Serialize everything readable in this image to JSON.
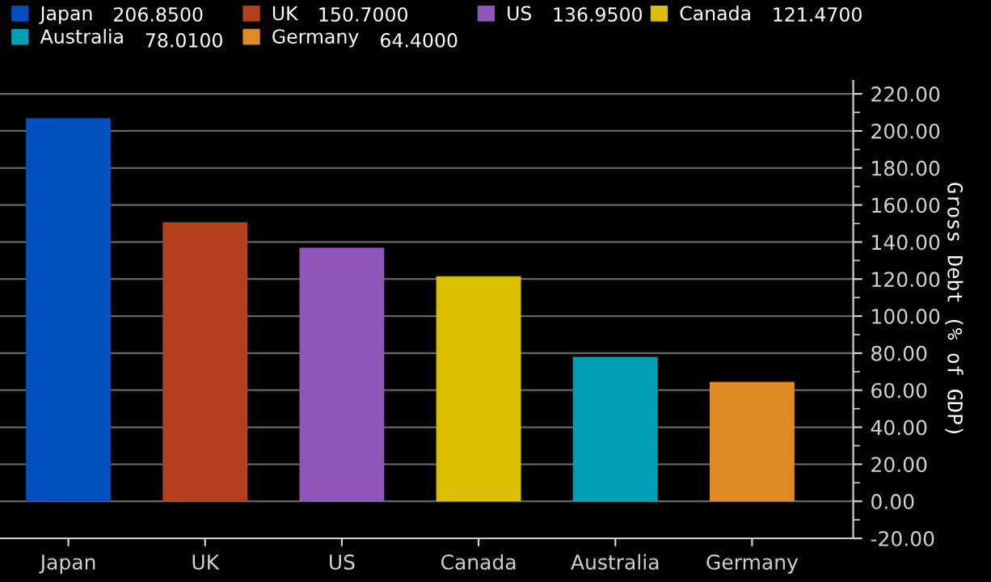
{
  "chart_data": {
    "type": "bar",
    "categories": [
      "Japan",
      "UK",
      "US",
      "Canada",
      "Australia",
      "Germany"
    ],
    "series": [
      {
        "name": "Japan",
        "color": "#0050c0",
        "values": [
          206.85,
          null,
          null,
          null,
          null,
          null
        ]
      },
      {
        "name": "UK",
        "color": "#b5401e",
        "values": [
          null,
          150.7,
          null,
          null,
          null,
          null
        ]
      },
      {
        "name": "US",
        "color": "#9055bb",
        "values": [
          null,
          null,
          136.95,
          null,
          null,
          null
        ]
      },
      {
        "name": "Canada",
        "color": "#d9bf00",
        "values": [
          null,
          null,
          null,
          121.47,
          null,
          null
        ]
      },
      {
        "name": "Australia",
        "color": "#009fb5",
        "values": [
          null,
          null,
          null,
          null,
          78.01,
          null
        ]
      },
      {
        "name": "Germany",
        "color": "#e08a25",
        "values": [
          null,
          null,
          null,
          null,
          null,
          64.4
        ]
      }
    ],
    "annotations": [
      "206.8500",
      "150.7000",
      "136.9500",
      "121.4700",
      "78.0100",
      "64.4000"
    ],
    "ylabel": "Gross Debt (% of GDP)",
    "ylim": [
      -20,
      227
    ],
    "yticks": [
      {
        "value": -20,
        "label": "-20.00"
      },
      {
        "value": 0,
        "label": "0.00"
      },
      {
        "value": 20,
        "label": "20.00"
      },
      {
        "value": 40,
        "label": "40.00"
      },
      {
        "value": 60,
        "label": "60.00"
      },
      {
        "value": 80,
        "label": "80.00"
      },
      {
        "value": 100,
        "label": "100.00"
      },
      {
        "value": 120,
        "label": "120.00"
      },
      {
        "value": 140,
        "label": "140.00"
      },
      {
        "value": 160,
        "label": "160.00"
      },
      {
        "value": 180,
        "label": "180.00"
      },
      {
        "value": 200,
        "label": "200.00"
      },
      {
        "value": 220,
        "label": "220.00"
      }
    ],
    "grid": "y",
    "legend": "top"
  }
}
